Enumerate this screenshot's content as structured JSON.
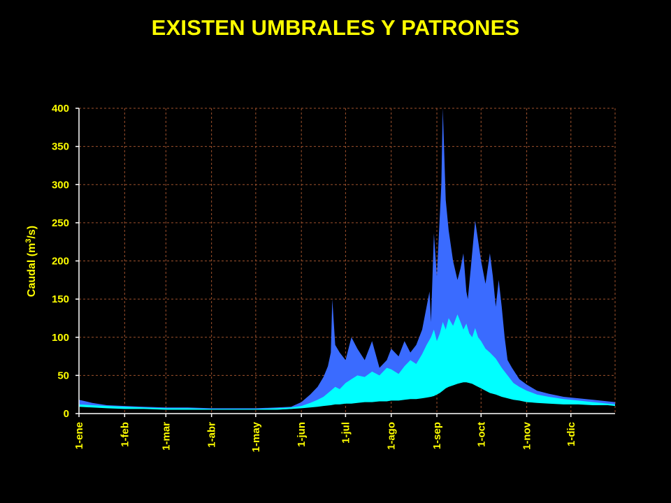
{
  "title": "EXISTEN UMBRALES Y PATRONES",
  "chart_data": {
    "type": "area",
    "title": "EXISTEN UMBRALES Y PATRONES",
    "ylabel": "Caudal (m³/s)",
    "ylabel_parts": {
      "main": "Caudal (m",
      "sup": "3",
      "tail": "/s)"
    },
    "xlabel": "",
    "ylim": [
      0,
      400
    ],
    "yticks": [
      0,
      50,
      100,
      150,
      200,
      250,
      300,
      350,
      400
    ],
    "xlim": [
      1,
      365
    ],
    "x_ticks": [
      {
        "label": "1-ene",
        "day": 1
      },
      {
        "label": "1-feb",
        "day": 32
      },
      {
        "label": "1-mar",
        "day": 60
      },
      {
        "label": "1-abr",
        "day": 91
      },
      {
        "label": "1-may",
        "day": 121
      },
      {
        "label": "1-jun",
        "day": 152
      },
      {
        "label": "1-jul",
        "day": 182
      },
      {
        "label": "1-ago",
        "day": 213
      },
      {
        "label": "1-sep",
        "day": 244
      },
      {
        "label": "1-oct",
        "day": 274
      },
      {
        "label": "1-nov",
        "day": 305
      },
      {
        "label": "1-dic",
        "day": 335
      }
    ],
    "grid": true,
    "legend": "none",
    "colors": {
      "background": "#000000",
      "text": "#ffff00",
      "grid": "#a0522d",
      "axis": "#ffffff",
      "outer_band": "#3a6bff",
      "inner_band": "#00ffff"
    },
    "series": [
      {
        "band": "outer",
        "x": [
          1,
          10,
          20,
          32,
          45,
          60,
          75,
          91,
          105,
          121,
          135,
          145,
          152,
          158,
          163,
          167,
          170,
          172,
          173,
          175,
          178,
          182,
          186,
          190,
          195,
          200,
          205,
          210,
          213,
          218,
          222,
          226,
          230,
          234,
          237,
          239,
          240,
          242,
          244,
          246,
          247,
          248,
          250,
          252,
          255,
          258,
          260,
          262,
          264,
          265,
          267,
          270,
          274,
          277,
          280,
          282,
          284,
          286,
          288,
          290,
          292,
          295,
          300,
          305,
          312,
          320,
          330,
          340,
          350,
          360,
          365
        ],
        "upper": [
          18,
          14,
          11,
          10,
          9,
          8,
          8,
          7,
          7,
          7,
          8,
          9,
          15,
          25,
          35,
          48,
          62,
          80,
          150,
          90,
          80,
          70,
          100,
          85,
          70,
          95,
          60,
          70,
          85,
          75,
          95,
          80,
          90,
          110,
          140,
          160,
          120,
          236,
          180,
          260,
          300,
          400,
          280,
          240,
          200,
          175,
          190,
          210,
          160,
          150,
          190,
          253,
          200,
          170,
          210,
          180,
          140,
          175,
          140,
          100,
          70,
          60,
          45,
          38,
          30,
          26,
          22,
          20,
          18,
          16,
          15
        ],
        "lower": [
          12,
          10,
          9,
          8,
          7,
          6,
          6,
          5,
          5,
          5,
          5,
          6,
          8,
          10,
          12,
          14,
          14,
          15,
          15,
          16,
          16,
          17,
          17,
          18,
          18,
          18,
          19,
          19,
          20,
          20,
          21,
          21,
          22,
          22,
          23,
          24,
          25,
          27,
          30,
          33,
          35,
          36,
          38,
          40,
          42,
          44,
          45,
          46,
          47,
          47,
          46,
          45,
          43,
          38,
          34,
          30,
          28,
          26,
          24,
          22,
          21,
          20,
          18,
          17,
          16,
          15,
          14,
          13,
          13,
          12,
          12
        ]
      },
      {
        "band": "inner",
        "x": [
          1,
          10,
          20,
          32,
          45,
          60,
          75,
          91,
          105,
          121,
          135,
          145,
          152,
          158,
          163,
          167,
          172,
          175,
          178,
          182,
          186,
          190,
          195,
          200,
          205,
          210,
          213,
          218,
          222,
          226,
          230,
          234,
          237,
          240,
          242,
          244,
          246,
          248,
          250,
          252,
          255,
          258,
          260,
          262,
          264,
          266,
          268,
          270,
          272,
          274,
          277,
          280,
          284,
          288,
          292,
          296,
          300,
          305,
          312,
          320,
          330,
          340,
          350,
          360,
          365
        ],
        "upper": [
          12,
          11,
          10,
          9,
          8,
          7,
          7,
          6,
          6,
          6,
          7,
          8,
          10,
          14,
          18,
          22,
          30,
          35,
          32,
          40,
          45,
          50,
          48,
          55,
          50,
          60,
          58,
          52,
          62,
          70,
          65,
          78,
          90,
          100,
          110,
          95,
          105,
          120,
          110,
          125,
          115,
          130,
          120,
          110,
          118,
          105,
          100,
          112,
          100,
          95,
          85,
          80,
          72,
          60,
          50,
          40,
          35,
          30,
          25,
          22,
          19,
          17,
          15,
          13,
          12
        ],
        "lower": [
          9,
          8,
          7,
          6,
          6,
          5,
          5,
          5,
          5,
          5,
          5,
          6,
          7,
          8,
          9,
          10,
          11,
          12,
          12,
          13,
          13,
          14,
          15,
          15,
          16,
          16,
          17,
          17,
          18,
          19,
          19,
          20,
          21,
          22,
          23,
          25,
          27,
          30,
          33,
          35,
          37,
          39,
          40,
          41,
          41,
          40,
          39,
          37,
          35,
          33,
          30,
          27,
          25,
          22,
          20,
          18,
          17,
          15,
          14,
          13,
          12,
          12,
          11,
          11,
          10
        ]
      }
    ]
  }
}
